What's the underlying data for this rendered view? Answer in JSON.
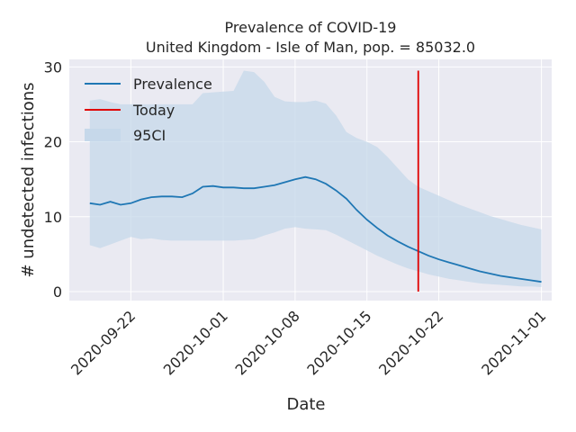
{
  "chart_data": {
    "type": "line",
    "title": "Prevalence of COVID-19",
    "subtitle": "United Kingdom - Isle of Man, pop. = 85032.0",
    "xlabel": "Date",
    "ylabel": "# undetected infections",
    "xlim": [
      "2020-09-16",
      "2020-11-02"
    ],
    "ylim": [
      -1.2,
      31
    ],
    "x_ticks": [
      "2020-09-22",
      "2020-10-01",
      "2020-10-08",
      "2020-10-15",
      "2020-10-22",
      "2020-11-01"
    ],
    "y_ticks": [
      0,
      10,
      20,
      30
    ],
    "grid": true,
    "legend_position": "top-left",
    "legend": [
      "Prevalence",
      "Today",
      "95CI"
    ],
    "colors": {
      "prevalence": "#1f77b4",
      "today": "#e00000",
      "ci": "#c6d8ea",
      "background": "#eaeaf2",
      "grid": "#ffffff"
    },
    "series": [
      {
        "name": "Prevalence",
        "x": [
          "2020-09-18",
          "2020-09-19",
          "2020-09-20",
          "2020-09-21",
          "2020-09-22",
          "2020-09-23",
          "2020-09-24",
          "2020-09-25",
          "2020-09-26",
          "2020-09-27",
          "2020-09-28",
          "2020-09-29",
          "2020-09-30",
          "2020-10-01",
          "2020-10-02",
          "2020-10-03",
          "2020-10-04",
          "2020-10-05",
          "2020-10-06",
          "2020-10-07",
          "2020-10-08",
          "2020-10-09",
          "2020-10-10",
          "2020-10-11",
          "2020-10-12",
          "2020-10-13",
          "2020-10-14",
          "2020-10-15",
          "2020-10-16",
          "2020-10-17",
          "2020-10-18",
          "2020-10-19",
          "2020-10-20",
          "2020-10-21",
          "2020-10-22",
          "2020-10-23",
          "2020-10-24",
          "2020-10-25",
          "2020-10-26",
          "2020-10-27",
          "2020-10-28",
          "2020-10-29",
          "2020-10-30",
          "2020-10-31",
          "2020-11-01"
        ],
        "values": [
          11.8,
          11.6,
          12.0,
          11.6,
          11.8,
          12.3,
          12.6,
          12.7,
          12.7,
          12.6,
          13.1,
          14.0,
          14.1,
          13.9,
          13.9,
          13.8,
          13.8,
          14.0,
          14.2,
          14.6,
          15.0,
          15.3,
          15.0,
          14.4,
          13.5,
          12.4,
          10.9,
          9.6,
          8.5,
          7.5,
          6.7,
          6.0,
          5.4,
          4.8,
          4.3,
          3.9,
          3.5,
          3.1,
          2.7,
          2.4,
          2.1,
          1.9,
          1.7,
          1.5,
          1.3
        ]
      },
      {
        "name": "95CI",
        "x": [
          "2020-09-18",
          "2020-09-19",
          "2020-09-20",
          "2020-09-21",
          "2020-09-22",
          "2020-09-23",
          "2020-09-24",
          "2020-09-25",
          "2020-09-26",
          "2020-09-27",
          "2020-09-28",
          "2020-09-29",
          "2020-09-30",
          "2020-10-01",
          "2020-10-02",
          "2020-10-03",
          "2020-10-04",
          "2020-10-05",
          "2020-10-06",
          "2020-10-07",
          "2020-10-08",
          "2020-10-09",
          "2020-10-10",
          "2020-10-11",
          "2020-10-12",
          "2020-10-13",
          "2020-10-14",
          "2020-10-15",
          "2020-10-16",
          "2020-10-17",
          "2020-10-18",
          "2020-10-19",
          "2020-10-20",
          "2020-10-21",
          "2020-10-22",
          "2020-10-23",
          "2020-10-24",
          "2020-10-25",
          "2020-10-26",
          "2020-10-27",
          "2020-10-28",
          "2020-10-29",
          "2020-10-30",
          "2020-10-31",
          "2020-11-01"
        ],
        "lower": [
          6.2,
          5.8,
          6.3,
          6.8,
          7.3,
          7.0,
          7.1,
          6.9,
          6.8,
          6.8,
          6.8,
          6.8,
          6.8,
          6.8,
          6.8,
          6.9,
          7.0,
          7.5,
          7.9,
          8.4,
          8.6,
          8.4,
          8.3,
          8.2,
          7.6,
          6.9,
          6.2,
          5.5,
          4.8,
          4.2,
          3.6,
          3.1,
          2.7,
          2.3,
          2.0,
          1.7,
          1.5,
          1.3,
          1.1,
          1.0,
          0.9,
          0.8,
          0.7,
          0.7,
          0.6
        ],
        "upper": [
          25.5,
          25.7,
          25.3,
          25.0,
          25.0,
          25.0,
          25.0,
          25.0,
          25.0,
          25.0,
          25.0,
          26.5,
          26.6,
          26.7,
          26.8,
          29.5,
          29.3,
          28.0,
          26.0,
          25.4,
          25.3,
          25.3,
          25.5,
          25.1,
          23.5,
          21.3,
          20.5,
          20.0,
          19.3,
          18.0,
          16.5,
          15.0,
          14.0,
          13.4,
          12.8,
          12.2,
          11.6,
          11.1,
          10.6,
          10.1,
          9.7,
          9.3,
          8.9,
          8.6,
          8.3
        ]
      }
    ],
    "today": "2020-10-20",
    "today_range": [
      0,
      29.5
    ]
  }
}
